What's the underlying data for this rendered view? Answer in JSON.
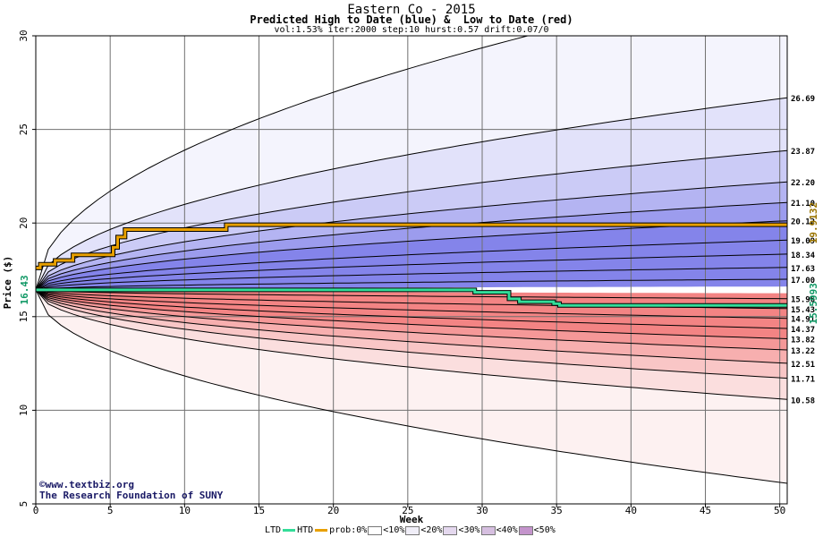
{
  "title": "Eastern Co - 2015",
  "subtitle": "Predicted High to Date (blue) &  Low to Date (red)",
  "params": "vol:1.53% iter:2000 step:10 hurst:0.57 drift:0.07/0",
  "credit_site": "©www.textbiz.org",
  "credit_org": "The Research Foundation of SUNY",
  "legend": {
    "ltd": "LTD",
    "htd": "HTD",
    "prob": "prob:0%",
    "b10": "<10%",
    "b20": "<20%",
    "b30": "<30%",
    "b40": "<40%",
    "b50": "<50%"
  },
  "colors": {
    "htd_line": "#e8a000",
    "ltd_line": "#33dd99",
    "blue_bands": [
      "#f4f4fd",
      "#e2e2fa",
      "#cbcbf6",
      "#b4b4f2",
      "#9c9cee",
      "#8484ea"
    ],
    "red_bands": [
      "#fdf1f1",
      "#fbdede",
      "#f9c6c6",
      "#f7afaf",
      "#f59898",
      "#f38484"
    ]
  },
  "chart_data": {
    "type": "area",
    "xlabel": "Week",
    "ylabel": "Price ($)",
    "xlim": [
      0,
      50.5
    ],
    "ylim": [
      5,
      30
    ],
    "xticks": [
      0,
      5,
      10,
      15,
      20,
      25,
      30,
      35,
      40,
      45,
      50
    ],
    "yticks": [
      5,
      10,
      15,
      20,
      25,
      30
    ],
    "start_price": 16.43,
    "start_price_label": "16.43",
    "grid": true,
    "high_bands_end": [
      26.69,
      23.87,
      22.2,
      21.1,
      20.12,
      19.09,
      18.34,
      17.63,
      17.0
    ],
    "high_bands_end_labels": [
      "26.69",
      "23.87",
      "22.20",
      "21.10",
      "20.12",
      "19.09",
      "18.34",
      "17.63",
      "17.00"
    ],
    "low_bands_end": [
      15.96,
      15.43,
      14.91,
      14.37,
      13.82,
      13.22,
      12.51,
      11.71,
      10.58
    ],
    "low_bands_end_labels": [
      "15.96",
      "15.43",
      "14.91",
      "14.37",
      "13.82",
      "13.22",
      "12.51",
      "11.71",
      "10.58"
    ],
    "outer_high_label_end": 30,
    "outer_low_end": 6.1,
    "htd_current": "19.9132",
    "ltd_current": "15.5993",
    "htd_series": {
      "x": [
        0,
        0.3,
        0.3,
        1.3,
        1.3,
        2.5,
        2.5,
        5.2,
        5.2,
        5.5,
        5.5,
        6.0,
        6.0,
        12.8,
        12.8,
        50.5
      ],
      "y": [
        17.6,
        17.6,
        17.8,
        17.8,
        18.0,
        18.0,
        18.3,
        18.3,
        18.7,
        18.7,
        19.25,
        19.25,
        19.65,
        19.65,
        19.91,
        19.91
      ]
    },
    "ltd_series": {
      "x": [
        0,
        29.5,
        29.5,
        31.8,
        31.8,
        32.5,
        32.5,
        34.8,
        34.8,
        35.2,
        35.2,
        50.5
      ],
      "y": [
        16.43,
        16.43,
        16.3,
        16.3,
        15.95,
        15.95,
        15.8,
        15.8,
        15.7,
        15.7,
        15.6,
        15.6
      ]
    }
  }
}
